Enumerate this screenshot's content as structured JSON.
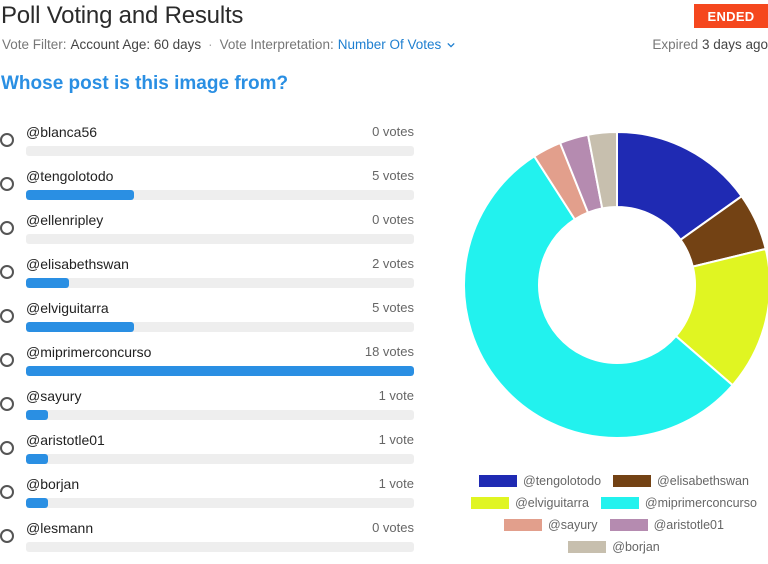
{
  "header": {
    "title": "Poll Voting and Results",
    "status_badge": "ENDED",
    "vote_filter_label": "Vote Filter:",
    "vote_filter_value": "Account Age: 60 days",
    "separator": "·",
    "interpretation_label": "Vote Interpretation:",
    "interpretation_value": "Number Of Votes",
    "expired_prefix": "Expired",
    "expired_value": "3 days ago"
  },
  "question": "Whose post is this image from?",
  "options": [
    {
      "label": "@blanca56",
      "votes_text": "0 votes",
      "fraction": 0
    },
    {
      "label": "@tengolotodo",
      "votes_text": "5 votes",
      "fraction": 0.278
    },
    {
      "label": "@ellenripley",
      "votes_text": "0 votes",
      "fraction": 0
    },
    {
      "label": "@elisabethswan",
      "votes_text": "2 votes",
      "fraction": 0.111
    },
    {
      "label": "@elviguitarra",
      "votes_text": "5 votes",
      "fraction": 0.278
    },
    {
      "label": "@miprimerconcurso",
      "votes_text": "18 votes",
      "fraction": 1.0
    },
    {
      "label": "@sayury",
      "votes_text": "1 vote",
      "fraction": 0.056
    },
    {
      "label": "@aristotle01",
      "votes_text": "1 vote",
      "fraction": 0.056
    },
    {
      "label": "@borjan",
      "votes_text": "1 vote",
      "fraction": 0.056
    },
    {
      "label": "@lesmann",
      "votes_text": "0 votes",
      "fraction": 0
    }
  ],
  "colors": {
    "accent": "#2a8fe3",
    "badge": "#f5471e"
  },
  "chart_data": {
    "type": "pie",
    "categories": [
      "@tengolotodo",
      "@elisabethswan",
      "@elviguitarra",
      "@miprimerconcurso",
      "@sayury",
      "@aristotle01",
      "@borjan"
    ],
    "values": [
      5,
      2,
      5,
      18,
      1,
      1,
      1
    ],
    "colors": [
      "#1f2ab3",
      "#734214",
      "#e0f522",
      "#22f2ee",
      "#e29f8c",
      "#b58bb0",
      "#c7bfae"
    ],
    "donut": true,
    "legend_position": "bottom",
    "legend_rows": [
      [
        0,
        1
      ],
      [
        2,
        3
      ],
      [
        4,
        5
      ],
      [
        6
      ]
    ]
  }
}
